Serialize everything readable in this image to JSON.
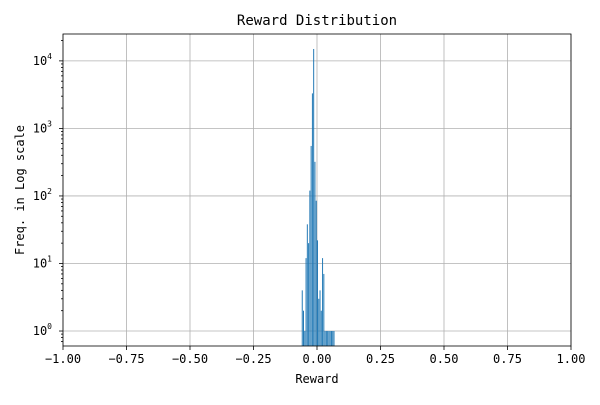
{
  "chart_data": {
    "type": "bar",
    "title": "Reward Distribution",
    "xlabel": "Reward",
    "ylabel": "Freq. in Log scale",
    "xlim": [
      -1.0,
      1.0
    ],
    "ylim": [
      0.6,
      25000
    ],
    "yscale": "log",
    "grid": true,
    "bar_color": "#1f77b4",
    "bin_width": 0.005,
    "x_ticks": [
      {
        "value": -1.0,
        "label": "−1.00"
      },
      {
        "value": -0.75,
        "label": "−0.75"
      },
      {
        "value": -0.5,
        "label": "−0.50"
      },
      {
        "value": -0.25,
        "label": "−0.25"
      },
      {
        "value": 0.0,
        "label": "0.00"
      },
      {
        "value": 0.25,
        "label": "0.25"
      },
      {
        "value": 0.5,
        "label": "0.50"
      },
      {
        "value": 0.75,
        "label": "0.75"
      },
      {
        "value": 1.0,
        "label": "1.00"
      }
    ],
    "y_ticks": [
      {
        "value": 1,
        "base": "10",
        "exp": "0"
      },
      {
        "value": 10,
        "base": "10",
        "exp": "1"
      },
      {
        "value": 100,
        "base": "10",
        "exp": "2"
      },
      {
        "value": 1000,
        "base": "10",
        "exp": "3"
      },
      {
        "value": 10000,
        "base": "10",
        "exp": "4"
      }
    ],
    "bins": [
      {
        "x": -0.0575,
        "count": 4
      },
      {
        "x": -0.0525,
        "count": 2
      },
      {
        "x": -0.0475,
        "count": 1
      },
      {
        "x": -0.0425,
        "count": 12
      },
      {
        "x": -0.0375,
        "count": 38
      },
      {
        "x": -0.0325,
        "count": 20
      },
      {
        "x": -0.0275,
        "count": 120
      },
      {
        "x": -0.0225,
        "count": 550
      },
      {
        "x": -0.0175,
        "count": 3300
      },
      {
        "x": -0.0125,
        "count": 15000
      },
      {
        "x": -0.0075,
        "count": 320
      },
      {
        "x": -0.0025,
        "count": 85
      },
      {
        "x": 0.0025,
        "count": 22
      },
      {
        "x": 0.0075,
        "count": 3
      },
      {
        "x": 0.0125,
        "count": 4
      },
      {
        "x": 0.0175,
        "count": 2
      },
      {
        "x": 0.0225,
        "count": 12
      },
      {
        "x": 0.0275,
        "count": 7
      },
      {
        "x": 0.0325,
        "count": 1
      },
      {
        "x": 0.0375,
        "count": 1
      },
      {
        "x": 0.0425,
        "count": 1
      },
      {
        "x": 0.0475,
        "count": 1
      },
      {
        "x": 0.0525,
        "count": 1
      },
      {
        "x": 0.0575,
        "count": 1
      },
      {
        "x": 0.0625,
        "count": 1
      },
      {
        "x": 0.0675,
        "count": 1
      }
    ]
  }
}
